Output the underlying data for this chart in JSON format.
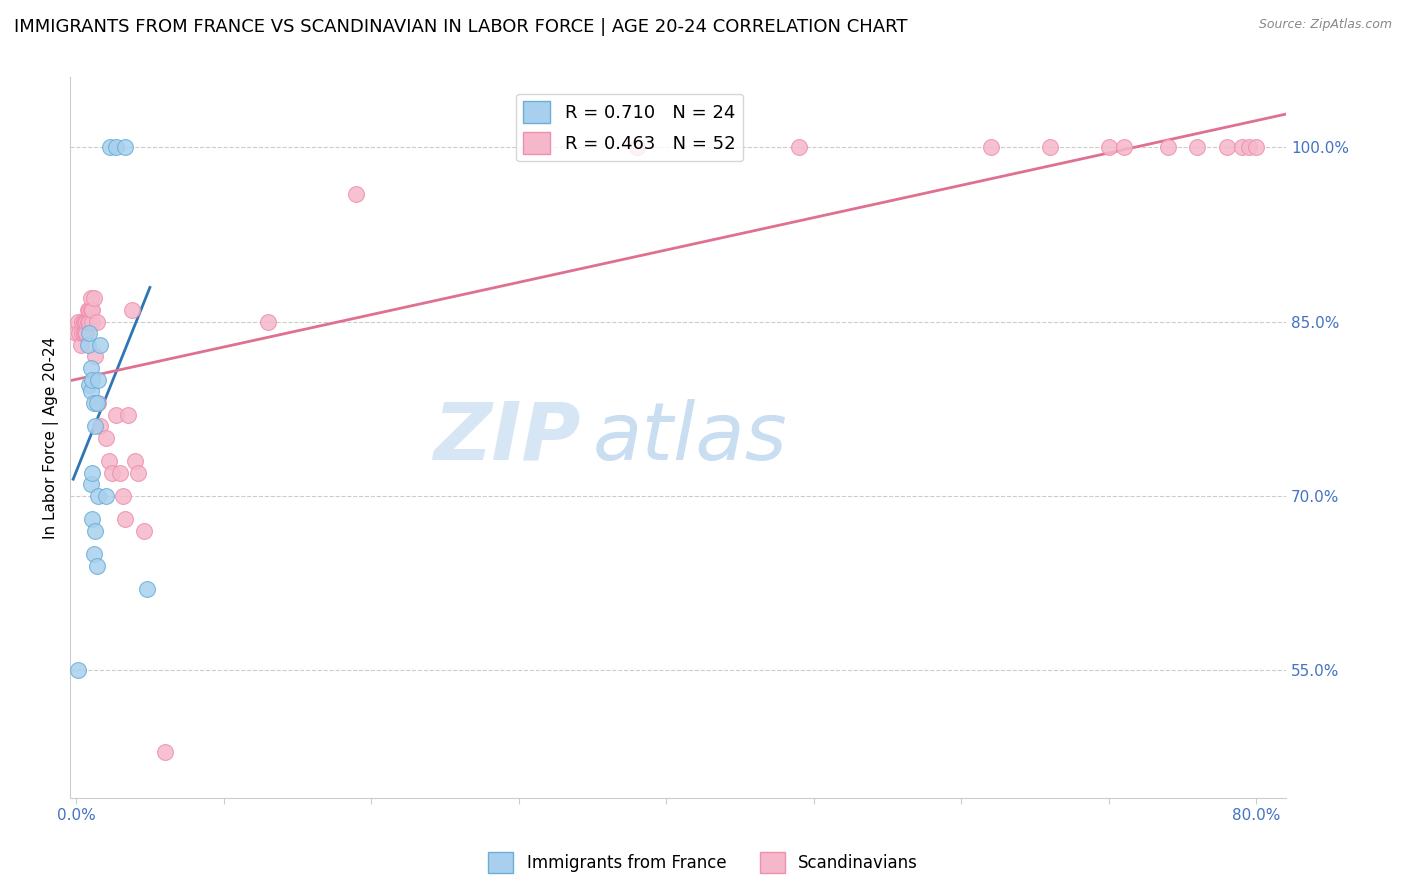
{
  "title": "IMMIGRANTS FROM FRANCE VS SCANDINAVIAN IN LABOR FORCE | AGE 20-24 CORRELATION CHART",
  "source": "Source: ZipAtlas.com",
  "ylabel": "In Labor Force | Age 20-24",
  "y_ticks_right": [
    0.55,
    0.7,
    0.85,
    1.0
  ],
  "y_tick_labels_right": [
    "55.0%",
    "70.0%",
    "85.0%",
    "100.0%"
  ],
  "xlim": [
    -0.004,
    0.82
  ],
  "ylim": [
    0.44,
    1.06
  ],
  "france_color": "#A8D0EE",
  "france_edge_color": "#6AAED6",
  "scand_color": "#F5B8CB",
  "scand_edge_color": "#EF8FAD",
  "france_trend_color": "#2E75B6",
  "scand_trend_color": "#E07090",
  "legend_france_label": "R = 0.710   N = 24",
  "legend_scand_label": "R = 0.463   N = 52",
  "legend_x_label": "Immigrants from France",
  "legend_scand_x_label": "Scandinavians",
  "watermark_zip": "ZIP",
  "watermark_atlas": "atlas",
  "france_x": [
    0.001,
    0.008,
    0.009,
    0.009,
    0.01,
    0.01,
    0.01,
    0.011,
    0.011,
    0.011,
    0.012,
    0.012,
    0.013,
    0.013,
    0.014,
    0.014,
    0.015,
    0.015,
    0.016,
    0.02,
    0.023,
    0.027,
    0.033,
    0.048
  ],
  "france_y": [
    0.55,
    0.83,
    0.84,
    0.795,
    0.79,
    0.81,
    0.71,
    0.72,
    0.68,
    0.8,
    0.65,
    0.78,
    0.67,
    0.76,
    0.64,
    0.78,
    0.7,
    0.8,
    0.83,
    0.7,
    1.0,
    1.0,
    1.0,
    0.62
  ],
  "scand_x": [
    0.0,
    0.001,
    0.002,
    0.003,
    0.004,
    0.004,
    0.005,
    0.005,
    0.006,
    0.006,
    0.007,
    0.007,
    0.008,
    0.008,
    0.009,
    0.009,
    0.01,
    0.01,
    0.011,
    0.011,
    0.012,
    0.013,
    0.014,
    0.015,
    0.016,
    0.02,
    0.022,
    0.024,
    0.027,
    0.03,
    0.032,
    0.033,
    0.035,
    0.038,
    0.04,
    0.042,
    0.046,
    0.06,
    0.13,
    0.19,
    0.38,
    0.49,
    0.62,
    0.66,
    0.7,
    0.71,
    0.74,
    0.76,
    0.78,
    0.79,
    0.795,
    0.8
  ],
  "scand_y": [
    0.84,
    0.85,
    0.84,
    0.83,
    0.84,
    0.85,
    0.84,
    0.85,
    0.85,
    0.84,
    0.84,
    0.85,
    0.85,
    0.86,
    0.86,
    0.85,
    0.86,
    0.87,
    0.85,
    0.86,
    0.87,
    0.82,
    0.85,
    0.78,
    0.76,
    0.75,
    0.73,
    0.72,
    0.77,
    0.72,
    0.7,
    0.68,
    0.77,
    0.86,
    0.73,
    0.72,
    0.67,
    0.48,
    0.85,
    0.96,
    1.0,
    1.0,
    1.0,
    1.0,
    1.0,
    1.0,
    1.0,
    1.0,
    1.0,
    1.0,
    1.0,
    1.0
  ],
  "grid_color": "#CCCCCC",
  "title_fontsize": 13,
  "axis_label_fontsize": 11,
  "tick_fontsize": 11,
  "right_tick_color": "#4472C4",
  "bottom_tick_color": "#4472C4"
}
